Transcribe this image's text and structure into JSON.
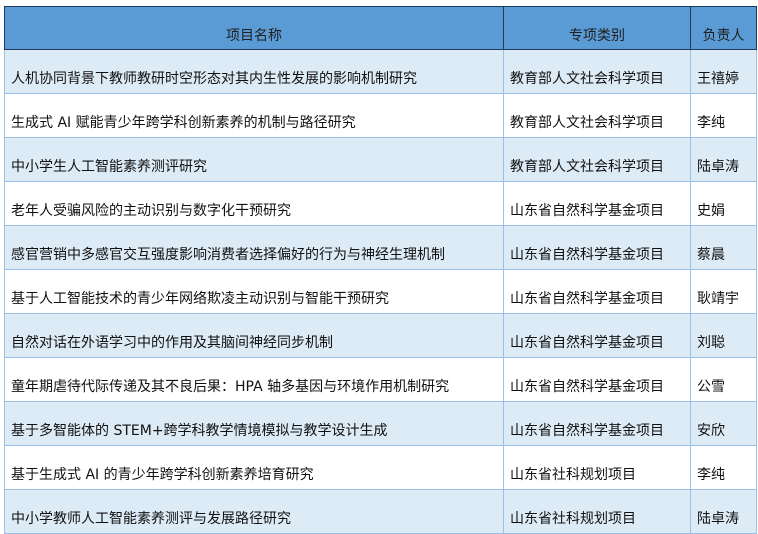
{
  "table": {
    "headers": [
      "项目名称",
      "专项类别",
      "负责人"
    ],
    "rows": [
      [
        "人机协同背景下教师教研时空形态对其内生性发展的影响机制研究",
        "教育部人文社会科学项目",
        "王禧婷"
      ],
      [
        "生成式 AI 赋能青少年跨学科创新素养的机制与路径研究",
        "教育部人文社会科学项目",
        "李纯"
      ],
      [
        "中小学生人工智能素养测评研究",
        "教育部人文社会科学项目",
        "陆卓涛"
      ],
      [
        "老年人受骗风险的主动识别与数字化干预研究",
        "山东省自然科学基金项目",
        "史娟"
      ],
      [
        "感官营销中多感官交互强度影响消费者选择偏好的行为与神经生理机制",
        "山东省自然科学基金项目",
        "蔡晨"
      ],
      [
        "基于人工智能技术的青少年网络欺凌主动识别与智能干预研究",
        "山东省自然科学基金项目",
        "耿靖宇"
      ],
      [
        "自然对话在外语学习中的作用及其脑间神经同步机制",
        "山东省自然科学基金项目",
        "刘聪"
      ],
      [
        "童年期虐待代际传递及其不良后果：HPA 轴多基因与环境作用机制研究",
        "山东省自然科学基金项目",
        "公雪"
      ],
      [
        "基于多智能体的 STEM+跨学科教学情境模拟与教学设计生成",
        "山东省自然科学基金项目",
        "安欣"
      ],
      [
        "基于生成式 AI 的青少年跨学科创新素养培育研究",
        "山东省社科规划项目",
        "李纯"
      ],
      [
        "中小学教师人工智能素养测评与发展路径研究",
        "山东省社科规划项目",
        "陆卓涛"
      ]
    ]
  },
  "colors": {
    "header": "#5b9bd5",
    "alt_row": "#ddebf7",
    "border": "#9bc2e6"
  }
}
